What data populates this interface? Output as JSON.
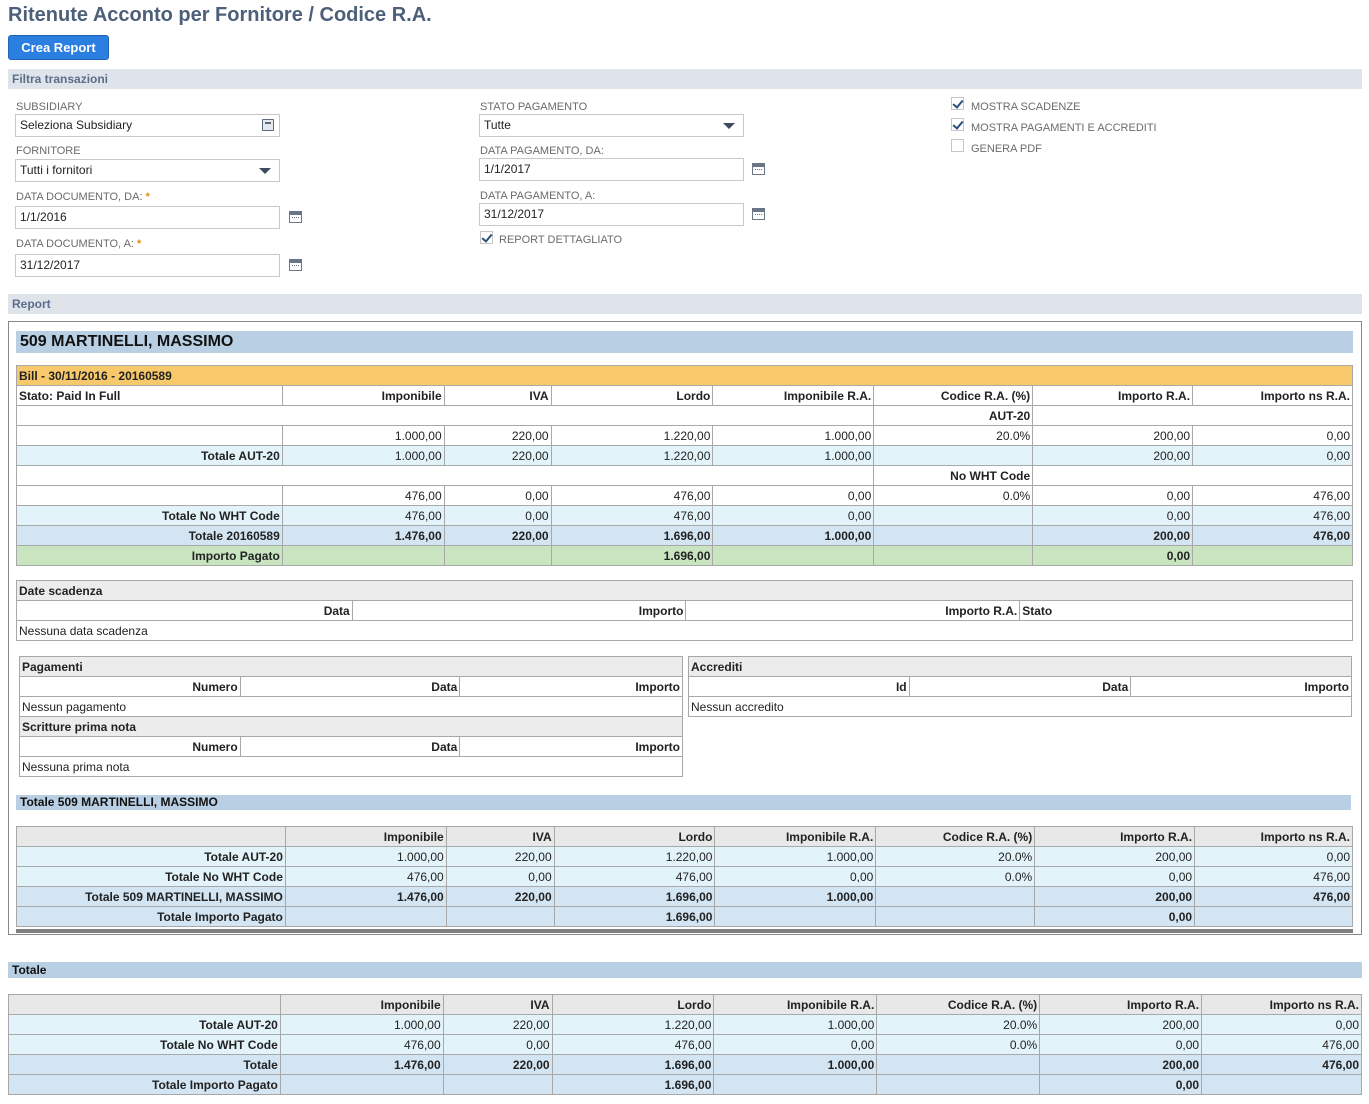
{
  "page": {
    "title": "Ritenute Acconto per Fornitore / Codice R.A.",
    "create_button": "Crea Report"
  },
  "filter": {
    "section_label": "Filtra transazioni",
    "subsidiary": {
      "label": "SUBSIDIARY",
      "value": "Seleziona Subsidiary"
    },
    "fornitore": {
      "label": "FORNITORE",
      "value": "Tutti i fornitori"
    },
    "data_doc_da": {
      "label": "DATA DOCUMENTO, DA:",
      "value": "1/1/2016"
    },
    "data_doc_a": {
      "label": "DATA DOCUMENTO, A:",
      "value": "31/12/2017"
    },
    "required_mark": "*",
    "stato_pagamento": {
      "label": "STATO PAGAMENTO",
      "value": "Tutte"
    },
    "data_pag_da": {
      "label": "DATA PAGAMENTO, DA:",
      "value": "1/1/2017"
    },
    "data_pag_a": {
      "label": "DATA PAGAMENTO, A:",
      "value": "31/12/2017"
    },
    "report_dettagliato": {
      "label": "REPORT DETTAGLIATO",
      "checked": true
    },
    "mostra_scadenze": {
      "label": "MOSTRA SCADENZE",
      "checked": true
    },
    "mostra_pagamenti": {
      "label": "MOSTRA PAGAMENTI E ACCREDITI",
      "checked": true
    },
    "genera_pdf": {
      "label": "GENERA PDF",
      "checked": false
    }
  },
  "report": {
    "section_label": "Report",
    "vendor": "509 MARTINELLI, MASSIMO",
    "headers": [
      "Imponibile",
      "IVA",
      "Lordo",
      "Imponibile R.A.",
      "Codice R.A. (%)",
      "Importo R.A.",
      "Importo ns R.A."
    ],
    "bill": {
      "title": "Bill - 30/11/2016 - 20160589",
      "stato": "Stato: Paid In Full",
      "aut_code": "AUT-20",
      "aut_row": [
        "1.000,00",
        "220,00",
        "1.220,00",
        "1.000,00",
        "20.0%",
        "200,00",
        "0,00"
      ],
      "tot_aut_label": "Totale AUT-20",
      "tot_aut": [
        "1.000,00",
        "220,00",
        "1.220,00",
        "1.000,00",
        "",
        "200,00",
        "0,00"
      ],
      "nowht_code": "No WHT Code",
      "nowht_row": [
        "476,00",
        "0,00",
        "476,00",
        "0,00",
        "0.0%",
        "0,00",
        "476,00"
      ],
      "tot_nowht_label": "Totale No WHT Code",
      "tot_nowht": [
        "476,00",
        "0,00",
        "476,00",
        "0,00",
        "",
        "0,00",
        "476,00"
      ],
      "tot_doc_label": "Totale 20160589",
      "tot_doc": [
        "1.476,00",
        "220,00",
        "1.696,00",
        "1.000,00",
        "",
        "200,00",
        "476,00"
      ],
      "pagato_label": "Importo Pagato",
      "pagato": [
        "",
        "",
        "1.696,00",
        "",
        "",
        "0,00",
        ""
      ]
    },
    "scadenze": {
      "title": "Date scadenza",
      "cols": [
        "Data",
        "Importo",
        "Importo R.A.",
        "Stato"
      ],
      "empty": "Nessuna data scadenza"
    },
    "pagamenti": {
      "title": "Pagamenti",
      "cols": [
        "Numero",
        "Data",
        "Importo"
      ],
      "empty": "Nessun pagamento"
    },
    "prima_nota": {
      "title": "Scritture prima nota",
      "cols": [
        "Numero",
        "Data",
        "Importo"
      ],
      "empty": "Nessuna prima nota"
    },
    "accrediti": {
      "title": "Accrediti",
      "cols": [
        "Id",
        "Data",
        "Importo"
      ],
      "empty": "Nessun accredito"
    },
    "vendor_total": {
      "title": "Totale 509 MARTINELLI, MASSIMO",
      "aut_label": "Totale AUT-20",
      "aut": [
        "1.000,00",
        "220,00",
        "1.220,00",
        "1.000,00",
        "20.0%",
        "200,00",
        "0,00"
      ],
      "nowht_label": "Totale No WHT Code",
      "nowht": [
        "476,00",
        "0,00",
        "476,00",
        "0,00",
        "0.0%",
        "0,00",
        "476,00"
      ],
      "tot_label": "Totale 509 MARTINELLI, MASSIMO",
      "tot": [
        "1.476,00",
        "220,00",
        "1.696,00",
        "1.000,00",
        "",
        "200,00",
        "476,00"
      ],
      "pagato_label": "Totale Importo Pagato",
      "pagato": [
        "",
        "",
        "1.696,00",
        "",
        "",
        "0,00",
        ""
      ]
    }
  },
  "grand_total": {
    "title": "Totale",
    "aut_label": "Totale AUT-20",
    "aut": [
      "1.000,00",
      "220,00",
      "1.220,00",
      "1.000,00",
      "20.0%",
      "200,00",
      "0,00"
    ],
    "nowht_label": "Totale No WHT Code",
    "nowht": [
      "476,00",
      "0,00",
      "476,00",
      "0,00",
      "0.0%",
      "0,00",
      "476,00"
    ],
    "tot_label": "Totale",
    "tot": [
      "1.476,00",
      "220,00",
      "1.696,00",
      "1.000,00",
      "",
      "200,00",
      "476,00"
    ],
    "pagato_label": "Totale Importo Pagato",
    "pagato": [
      "",
      "",
      "1.696,00",
      "",
      "",
      "0,00",
      ""
    ]
  }
}
